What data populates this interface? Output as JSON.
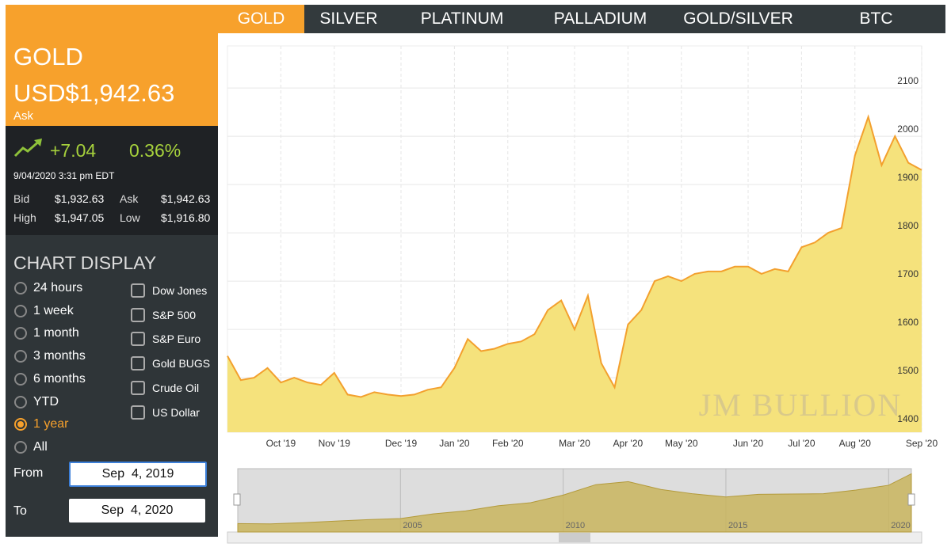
{
  "tabs": {
    "items": [
      "GOLD",
      "SILVER",
      "PLATINUM",
      "PALLADIUM",
      "GOLD/SILVER",
      "BTC"
    ],
    "active": "GOLD"
  },
  "quote": {
    "metal": "GOLD",
    "price": "USD$1,942.63",
    "price_type": "Ask",
    "change": "+7.04",
    "change_percent": "0.36%",
    "timestamp": "9/04/2020 3:31 pm EDT",
    "rows": [
      [
        "Bid",
        "$1,932.63",
        "Ask",
        "$1,942.63"
      ],
      [
        "High",
        "$1,947.05",
        "Low",
        "$1,916.80"
      ]
    ]
  },
  "chart_display": {
    "title": "CHART DISPLAY",
    "ranges": [
      "24 hours",
      "1 week",
      "1 month",
      "3 months",
      "6 months",
      "YTD",
      "1 year",
      "All"
    ],
    "selected": "1 year",
    "overlays": [
      "Dow Jones",
      "S&P 500",
      "S&P Euro",
      "Gold BUGS",
      "Crude Oil",
      "US Dollar"
    ],
    "from_label": "From",
    "from": "Sep  4, 2019",
    "to_label": "To",
    "to": "Sep  4, 2020"
  },
  "chart_data": {
    "type": "line",
    "categories": [
      null,
      null,
      null,
      null,
      "Oct '19",
      null,
      null,
      null,
      "Nov '19",
      null,
      null,
      null,
      null,
      "Dec '19",
      null,
      null,
      null,
      "Jan '20",
      null,
      null,
      null,
      "Feb '20",
      null,
      null,
      null,
      null,
      "Mar '20",
      null,
      null,
      null,
      "Apr '20",
      null,
      null,
      null,
      "May '20",
      null,
      null,
      null,
      null,
      "Jun '20",
      null,
      null,
      null,
      "Jul '20",
      null,
      null,
      null,
      "Aug '20",
      null,
      null,
      null,
      null,
      "Sep '20"
    ],
    "values": [
      1545,
      1495,
      1500,
      1520,
      1490,
      1500,
      1490,
      1485,
      1510,
      1465,
      1460,
      1470,
      1465,
      1462,
      1465,
      1475,
      1480,
      1520,
      1580,
      1555,
      1560,
      1570,
      1575,
      1590,
      1640,
      1660,
      1600,
      1670,
      1530,
      1480,
      1610,
      1640,
      1700,
      1710,
      1700,
      1715,
      1720,
      1720,
      1730,
      1730,
      1715,
      1725,
      1720,
      1770,
      1780,
      1800,
      1810,
      1960,
      2040,
      1940,
      2000,
      1945,
      1930
    ],
    "color": "#f3a02e",
    "fill": "#f5e27c",
    "ylim": [
      1387,
      2187
    ],
    "yticks": [
      1400,
      1500,
      1600,
      1700,
      1800,
      1900,
      2000,
      2100
    ],
    "grid": true,
    "watermark": "JM BULLION"
  },
  "navigator": {
    "x": [
      2000,
      2001,
      2002,
      2003,
      2004,
      2005,
      2006,
      2007,
      2008,
      2009,
      2010,
      2011,
      2012,
      2013,
      2014,
      2015,
      2016,
      2017,
      2018,
      2019,
      2020,
      2020.7
    ],
    "values": [
      280,
      270,
      310,
      360,
      410,
      445,
      600,
      700,
      870,
      970,
      1225,
      1570,
      1670,
      1410,
      1265,
      1160,
      1250,
      1260,
      1270,
      1390,
      1550,
      1930
    ],
    "xlim": [
      2000,
      2020.7
    ],
    "ylim": [
      0,
      2100
    ],
    "xticks": [
      2005,
      2010,
      2015,
      2020
    ]
  }
}
